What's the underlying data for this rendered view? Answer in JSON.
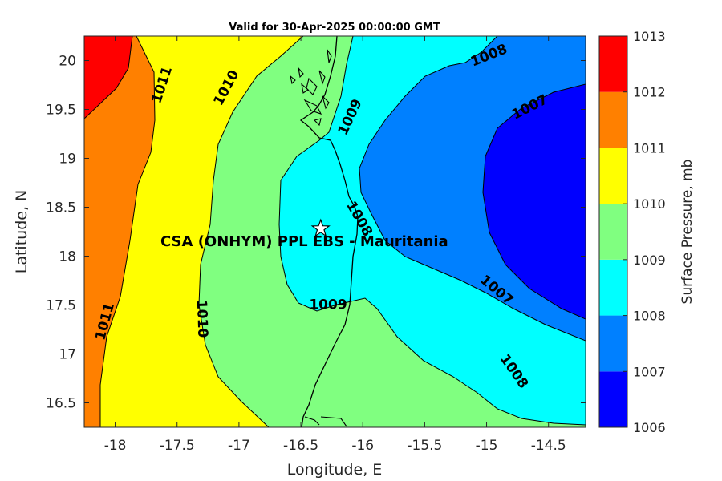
{
  "title": "Valid for 30-Apr-2025 00:00:00 GMT",
  "map": {
    "xlabel": "Longitude, E",
    "ylabel": "Latitude, N",
    "xlim": [
      -18.25,
      -14.2
    ],
    "ylim": [
      16.25,
      20.25
    ],
    "xticks": [
      {
        "value": -18,
        "label": "-18"
      },
      {
        "value": -17.5,
        "label": "-17.5"
      },
      {
        "value": -17,
        "label": "-17"
      },
      {
        "value": -16.5,
        "label": "-16.5"
      },
      {
        "value": -16,
        "label": "-16"
      },
      {
        "value": -15.5,
        "label": "-15.5"
      },
      {
        "value": -15,
        "label": "-15"
      },
      {
        "value": -14.5,
        "label": "-14.5"
      }
    ],
    "yticks": [
      {
        "value": 16.5,
        "label": "16.5"
      },
      {
        "value": 17,
        "label": "17"
      },
      {
        "value": 17.5,
        "label": "17.5"
      },
      {
        "value": 18,
        "label": "18"
      },
      {
        "value": 18.5,
        "label": "18.5"
      },
      {
        "value": 19,
        "label": "19"
      },
      {
        "value": 19.5,
        "label": "19.5"
      },
      {
        "value": 20,
        "label": "20"
      }
    ],
    "site": {
      "name": "CSA (ONHYM) PPL EBS  - Mauritania",
      "lon": -16.34,
      "lat": 18.28
    },
    "contour_labels": [
      {
        "text": "1011",
        "lon": -17.62,
        "lat": 19.75,
        "rotate": -72
      },
      {
        "text": "1010",
        "lon": -17.1,
        "lat": 19.72,
        "rotate": -62
      },
      {
        "text": "1009",
        "lon": -16.1,
        "lat": 19.42,
        "rotate": -65
      },
      {
        "text": "1008",
        "lon": -14.98,
        "lat": 20.05,
        "rotate": -22
      },
      {
        "text": "1007",
        "lon": -14.65,
        "lat": 19.52,
        "rotate": -27
      },
      {
        "text": "1008",
        "lon": -16.03,
        "lat": 18.38,
        "rotate": 60
      },
      {
        "text": "1009",
        "lon": -16.28,
        "lat": 17.5,
        "rotate": 0
      },
      {
        "text": "1007",
        "lon": -14.92,
        "lat": 17.65,
        "rotate": 40
      },
      {
        "text": "1008",
        "lon": -14.78,
        "lat": 16.82,
        "rotate": 55
      },
      {
        "text": "1011",
        "lon": -18.08,
        "lat": 17.33,
        "rotate": -75
      },
      {
        "text": "1010",
        "lon": -17.3,
        "lat": 17.36,
        "rotate": 88
      }
    ]
  },
  "colorbar": {
    "label": "Surface Pressure, mb",
    "levels": [
      {
        "value": "1006",
        "color": "#0000ff"
      },
      {
        "value": "1007",
        "color": "#0080ff"
      },
      {
        "value": "1008",
        "color": "#00ffff"
      },
      {
        "value": "1009",
        "color": "#80ff80"
      },
      {
        "value": "1010",
        "color": "#ffff00"
      },
      {
        "value": "1011",
        "color": "#ff8000"
      },
      {
        "value": "1012",
        "color": "#ff0000"
      },
      {
        "value": "1013",
        "color": "#800000"
      }
    ]
  }
}
